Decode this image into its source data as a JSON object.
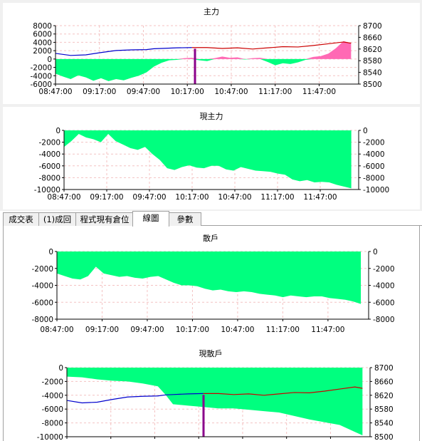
{
  "tabs": [
    {
      "label": "成交表",
      "active": false
    },
    {
      "label": "(1)成回",
      "active": false
    },
    {
      "label": "程式現有倉位",
      "active": false
    },
    {
      "label": "線圖",
      "active": true
    },
    {
      "label": "參數",
      "active": false
    }
  ],
  "colors": {
    "fill_green": "#00ff7f",
    "fill_pink": "#ff69b4",
    "line_blue": "#0000cd",
    "line_red": "#cc0000",
    "marker_purple": "#8b008b",
    "grid": "#f4c2c2"
  },
  "chart_data": [
    {
      "id": "main",
      "title": "主力",
      "type": "area",
      "x_ticks": [
        "08:47:00",
        "09:17:00",
        "09:47:00",
        "10:17:00",
        "10:47:00",
        "11:17:00",
        "11:47:00"
      ],
      "y_left_ticks": [
        "8000",
        "6000",
        "4000",
        "2000",
        "0",
        "-2000",
        "-4000",
        "-6000"
      ],
      "y_left_range": [
        -6000,
        8000
      ],
      "y_right_ticks": [
        "8700",
        "8660",
        "8620",
        "8580",
        "8540",
        "8500"
      ],
      "y_right_range": [
        8500,
        8700
      ],
      "grid": true,
      "series": [
        {
          "kind": "area_left",
          "x": [
            0,
            5,
            10,
            15,
            20,
            25,
            30,
            35,
            40,
            45,
            50,
            55,
            60,
            65,
            70,
            75,
            80,
            85,
            90,
            95,
            100,
            105,
            110,
            115,
            120,
            125,
            130,
            135,
            140,
            145,
            150,
            155,
            160,
            165,
            170,
            175,
            180,
            185,
            190,
            195
          ],
          "values": [
            -3500,
            -4200,
            -4800,
            -3900,
            -4400,
            -5200,
            -4600,
            -5300,
            -4800,
            -5100,
            -4500,
            -4000,
            -3200,
            -1800,
            -900,
            -300,
            -200,
            200,
            300,
            -300,
            -500,
            200,
            600,
            300,
            400,
            -100,
            200,
            300,
            -700,
            -1500,
            -1000,
            -1200,
            -800,
            -200,
            500,
            700,
            1300,
            2600,
            4300,
            3800
          ]
        },
        {
          "kind": "price_right",
          "x": [
            0,
            10,
            20,
            30,
            40,
            50,
            60,
            65,
            70,
            80,
            90,
            100,
            110,
            120,
            130,
            140,
            150,
            160,
            170,
            180,
            190,
            195
          ],
          "values": [
            8605,
            8598,
            8600,
            8608,
            8615,
            8617,
            8618,
            8621,
            8622,
            8624,
            8625,
            8625,
            8622,
            8624,
            8620,
            8624,
            8628,
            8627,
            8632,
            8638,
            8644,
            8640
          ]
        }
      ]
    },
    {
      "id": "now_main",
      "title": "現主力",
      "type": "area",
      "x_ticks": [
        "08:47:00",
        "09:17:00",
        "09:47:00",
        "10:17:00",
        "10:47:00",
        "11:17:00",
        "11:47:00"
      ],
      "y_left_ticks": [
        "0",
        "-2000",
        "-4000",
        "-6000",
        "-8000",
        "-10000"
      ],
      "y_left_range": [
        -10000,
        0
      ],
      "y_right_ticks": [
        "0",
        "-2000",
        "-4000",
        "-6000",
        "-8000",
        "-10000"
      ],
      "y_right_range": [
        -10000,
        0
      ],
      "grid": true,
      "series": [
        {
          "kind": "area_left",
          "x": [
            0,
            5,
            10,
            15,
            20,
            25,
            30,
            35,
            40,
            45,
            50,
            55,
            60,
            65,
            70,
            75,
            80,
            85,
            90,
            95,
            100,
            105,
            110,
            115,
            120,
            125,
            130,
            135,
            140,
            145,
            150,
            155,
            160,
            165,
            170,
            175,
            180,
            185,
            190,
            195
          ],
          "values": [
            -2800,
            -1800,
            -600,
            -1200,
            -1500,
            -2000,
            -600,
            -1800,
            -2400,
            -3000,
            -3300,
            -2800,
            -4000,
            -5000,
            -6400,
            -6700,
            -6200,
            -5900,
            -6300,
            -6400,
            -6000,
            -6000,
            -6600,
            -6800,
            -6200,
            -6500,
            -6800,
            -6900,
            -7000,
            -7300,
            -7500,
            -8300,
            -8600,
            -8400,
            -8800,
            -8700,
            -8800,
            -9200,
            -9500,
            -9800
          ]
        }
      ]
    },
    {
      "id": "retail",
      "title": "散戶",
      "type": "area",
      "x_ticks": [
        "08:47:00",
        "09:17:00",
        "09:47:00",
        "10:17:00",
        "10:47:00",
        "11:17:00",
        "11:47:00"
      ],
      "y_left_ticks": [
        "0",
        "-2000",
        "-4000",
        "-6000",
        "-8000"
      ],
      "y_left_range": [
        -8000,
        0
      ],
      "y_right_ticks": [
        "0",
        "-2000",
        "-4000",
        "-6000",
        "-8000"
      ],
      "y_right_range": [
        -8000,
        0
      ],
      "grid": true,
      "series": [
        {
          "kind": "area_left",
          "x": [
            0,
            5,
            10,
            15,
            20,
            25,
            30,
            35,
            40,
            45,
            50,
            55,
            60,
            65,
            70,
            75,
            80,
            85,
            90,
            95,
            100,
            105,
            110,
            115,
            120,
            125,
            130,
            135,
            140,
            145,
            150,
            155,
            160,
            165,
            170,
            175,
            180,
            185,
            190,
            195
          ],
          "values": [
            -2600,
            -2900,
            -3200,
            -3300,
            -2900,
            -1800,
            -2600,
            -2800,
            -3000,
            -2900,
            -3100,
            -3200,
            -3000,
            -2900,
            -3300,
            -3700,
            -4000,
            -4000,
            -4100,
            -4400,
            -4600,
            -4500,
            -4700,
            -4800,
            -4700,
            -4800,
            -5000,
            -5100,
            -5200,
            -5400,
            -5200,
            -5300,
            -5400,
            -5300,
            -5300,
            -5500,
            -5600,
            -5700,
            -5900,
            -6200
          ]
        }
      ]
    },
    {
      "id": "now_retail",
      "title": "現散戶",
      "type": "area",
      "x_ticks": [],
      "y_left_ticks": [
        "0",
        "-2000",
        "-4000",
        "-6000",
        "-8000",
        "-10000"
      ],
      "y_left_range": [
        -10000,
        0
      ],
      "y_right_ticks": [
        "8700",
        "8660",
        "8620",
        "8580",
        "8540",
        "8500"
      ],
      "y_right_range": [
        8500,
        8700
      ],
      "grid": true,
      "series": [
        {
          "kind": "area_left",
          "x": [
            0,
            10,
            20,
            30,
            40,
            50,
            60,
            65,
            70,
            80,
            90,
            100,
            110,
            120,
            130,
            140,
            150,
            160,
            170,
            180,
            190,
            195
          ],
          "values": [
            -1300,
            -1400,
            -1700,
            -1900,
            -2000,
            -2300,
            -2700,
            -3900,
            -5300,
            -5500,
            -5700,
            -5900,
            -5900,
            -6100,
            -6300,
            -6500,
            -7000,
            -7500,
            -7900,
            -8300,
            -9300,
            -9800
          ]
        },
        {
          "kind": "price_right",
          "x": [
            0,
            10,
            20,
            30,
            40,
            50,
            60,
            65,
            70,
            80,
            90,
            100,
            110,
            120,
            130,
            140,
            150,
            160,
            170,
            180,
            190,
            195
          ],
          "values": [
            8605,
            8598,
            8600,
            8608,
            8615,
            8617,
            8618,
            8621,
            8622,
            8624,
            8625,
            8625,
            8622,
            8624,
            8620,
            8624,
            8628,
            8627,
            8632,
            8638,
            8644,
            8640
          ]
        }
      ]
    }
  ]
}
